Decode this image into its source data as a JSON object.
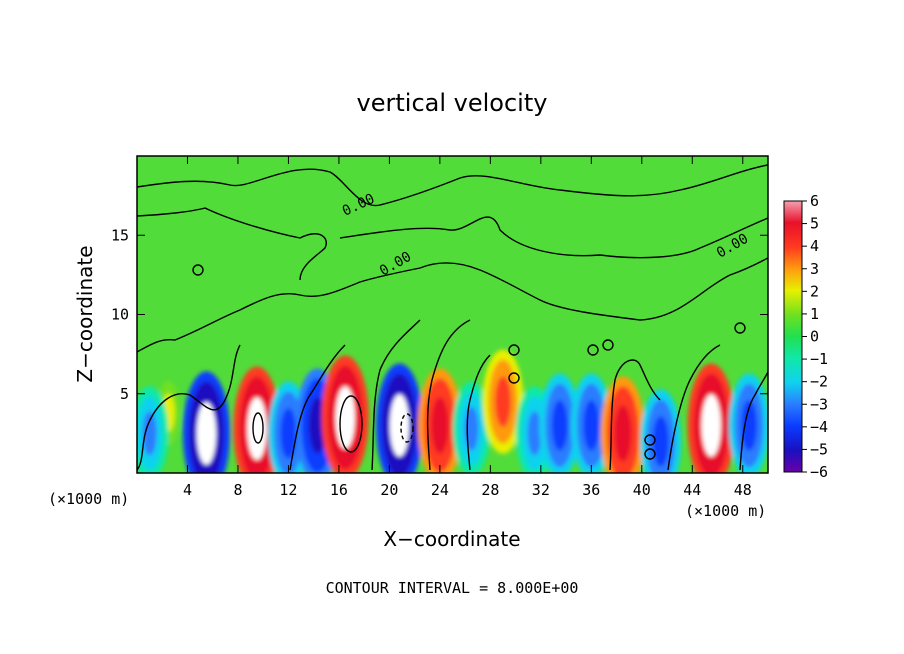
{
  "chart_data": {
    "type": "heatmap",
    "title": "vertical velocity",
    "xlabel": "X−coordinate",
    "ylabel": "Z−coordinate",
    "x_unit_left": "(×1000 m)",
    "x_unit_right": "(×1000 m)",
    "footer": "CONTOUR INTERVAL = 8.000E+00",
    "xlim": [
      0,
      50
    ],
    "ylim": [
      0,
      20
    ],
    "x_ticks": [
      4,
      8,
      12,
      16,
      20,
      24,
      28,
      32,
      36,
      40,
      44,
      48
    ],
    "x_tick_labels": [
      "4",
      "8",
      "12",
      "16",
      "20",
      "24",
      "28",
      "32",
      "36",
      "40",
      "44",
      "48"
    ],
    "y_ticks": [
      5,
      10,
      15
    ],
    "y_tick_labels": [
      "5",
      "10",
      "15"
    ],
    "colorbar": {
      "min": -6,
      "max": 6,
      "ticks": [
        6,
        5,
        4,
        3,
        2,
        1,
        0,
        -1,
        -2,
        -3,
        -4,
        -5,
        -6
      ],
      "tick_labels": [
        "6",
        "5",
        "4",
        "3",
        "2",
        "1",
        "0",
        "−1",
        "−2",
        "−3",
        "−4",
        "−5",
        "−6"
      ]
    },
    "contour_labels": [
      "0.00",
      "0.00",
      "0.00"
    ],
    "background_value": 0.3,
    "cells": [
      {
        "x": 5.5,
        "z": 2.5,
        "value": -6
      },
      {
        "x": 9.5,
        "z": 2.8,
        "value": 6
      },
      {
        "x": 12.0,
        "z": 2.5,
        "value": -4
      },
      {
        "x": 14.3,
        "z": 3.0,
        "value": -5
      },
      {
        "x": 16.5,
        "z": 3.5,
        "value": 6
      },
      {
        "x": 20.8,
        "z": 3.0,
        "value": -6
      },
      {
        "x": 24.0,
        "z": 3.0,
        "value": 5
      },
      {
        "x": 26.5,
        "z": 2.8,
        "value": -3
      },
      {
        "x": 29.0,
        "z": 4.5,
        "value": 4
      },
      {
        "x": 31.5,
        "z": 2.5,
        "value": -3
      },
      {
        "x": 33.5,
        "z": 3.0,
        "value": -4
      },
      {
        "x": 36.0,
        "z": 3.0,
        "value": -4
      },
      {
        "x": 38.5,
        "z": 2.5,
        "value": 5
      },
      {
        "x": 41.5,
        "z": 2.0,
        "value": -4
      },
      {
        "x": 45.5,
        "z": 3.0,
        "value": 6
      },
      {
        "x": 48.5,
        "z": 3.0,
        "value": -4
      },
      {
        "x": 2.5,
        "z": 3.8,
        "value": 2
      },
      {
        "x": 1.0,
        "z": 2.5,
        "value": -3
      }
    ]
  }
}
